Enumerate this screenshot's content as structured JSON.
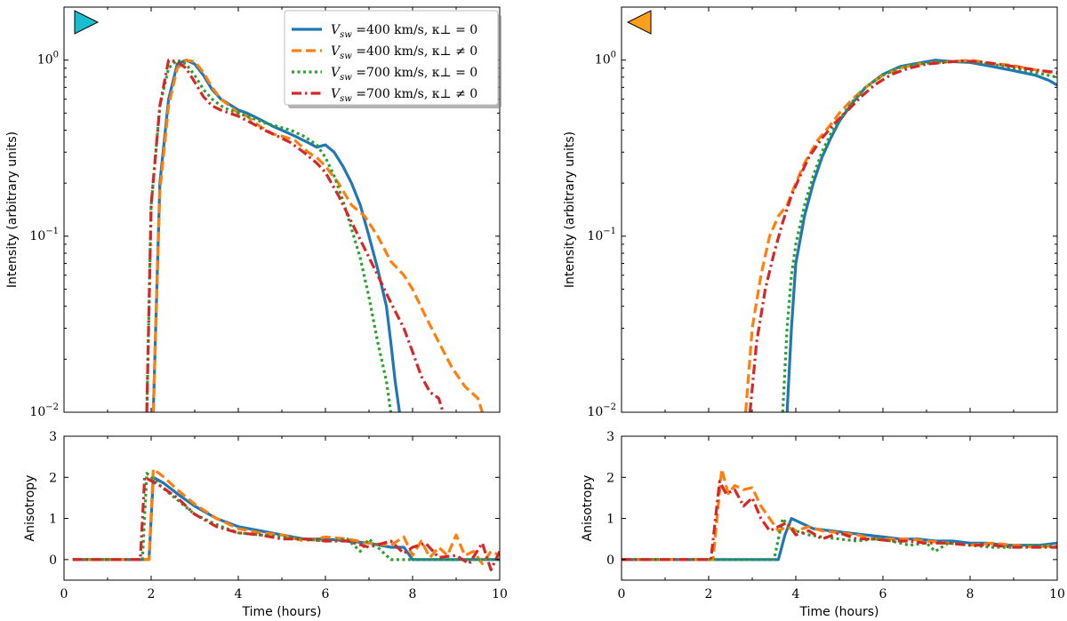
{
  "colors": {
    "blue": "#1f77b4",
    "orange": "#ff7f0e",
    "green": "#2ca02c",
    "red": "#d62728",
    "marker_left": "#17becf",
    "marker_right": "#ff9f1c"
  },
  "legend": [
    {
      "name": "V_sw =400 km/s, κ⊥ = 0",
      "text_main": "V",
      "text_sub": "sw",
      "text_rest": " =400 km/s, κ⊥ = 0",
      "color": "#1f77b4",
      "style": "solid"
    },
    {
      "name": "V_sw =400 km/s, κ⊥ ≠ 0",
      "text_main": "V",
      "text_sub": "sw",
      "text_rest": " =400 km/s, κ⊥ ≠ 0",
      "color": "#ff7f0e",
      "style": "dashed"
    },
    {
      "name": "V_sw =700 km/s, κ⊥ = 0",
      "text_main": "V",
      "text_sub": "sw",
      "text_rest": " =700 km/s, κ⊥ = 0",
      "color": "#2ca02c",
      "style": "dotted"
    },
    {
      "name": "V_sw =700 km/s, κ⊥ ≠ 0",
      "text_main": "V",
      "text_sub": "sw",
      "text_rest": " =700 km/s, κ⊥ ≠ 0",
      "color": "#d62728",
      "style": "dashdot"
    }
  ],
  "chart_data": [
    {
      "type": "line",
      "panel": "top-left",
      "ylabel": "Intensity (arbitrary units)",
      "xlabel": "",
      "yscale": "log",
      "xlim": [
        0,
        10
      ],
      "ylim": [
        0.01,
        2
      ],
      "ytick_labels": [
        {
          "main": "10",
          "exp": "−2",
          "value": 0.01
        },
        {
          "main": "10",
          "exp": "−1",
          "value": 0.1
        },
        {
          "main": "10",
          "exp": "0",
          "value": 1
        }
      ],
      "series": [
        {
          "name": "V_sw =400 km/s, κ⊥ = 0",
          "x": [
            2.05,
            2.2,
            2.4,
            2.6,
            2.8,
            3.0,
            3.2,
            3.4,
            3.6,
            3.8,
            4.0,
            4.2,
            4.5,
            4.8,
            5.0,
            5.3,
            5.6,
            5.8,
            6.0,
            6.2,
            6.4,
            6.6,
            6.8,
            7.0,
            7.2,
            7.4,
            7.5,
            7.6,
            7.7
          ],
          "y": [
            0.01,
            0.2,
            0.6,
            0.95,
            1.0,
            0.95,
            0.82,
            0.68,
            0.6,
            0.56,
            0.52,
            0.5,
            0.46,
            0.42,
            0.4,
            0.37,
            0.34,
            0.32,
            0.33,
            0.3,
            0.25,
            0.2,
            0.15,
            0.1,
            0.065,
            0.04,
            0.025,
            0.015,
            0.01
          ]
        },
        {
          "name": "V_sw =400 km/s, κ⊥ ≠ 0",
          "x": [
            2.05,
            2.2,
            2.4,
            2.6,
            2.8,
            3.0,
            3.2,
            3.4,
            3.6,
            3.8,
            4.0,
            4.2,
            4.5,
            4.8,
            5.0,
            5.3,
            5.6,
            5.8,
            6.0,
            6.3,
            6.6,
            6.9,
            7.2,
            7.5,
            7.8,
            8.0,
            8.3,
            8.6,
            8.9,
            9.2,
            9.5,
            9.6
          ],
          "y": [
            0.01,
            0.18,
            0.55,
            0.9,
            1.0,
            0.98,
            0.85,
            0.7,
            0.6,
            0.55,
            0.5,
            0.48,
            0.42,
            0.38,
            0.37,
            0.35,
            0.3,
            0.28,
            0.25,
            0.2,
            0.15,
            0.13,
            0.1,
            0.072,
            0.06,
            0.05,
            0.035,
            0.025,
            0.018,
            0.014,
            0.012,
            0.01
          ]
        },
        {
          "name": "V_sw =700 km/s, κ⊥ = 0",
          "x": [
            1.9,
            2.0,
            2.2,
            2.4,
            2.6,
            2.8,
            3.0,
            3.2,
            3.4,
            3.6,
            3.8,
            4.0,
            4.3,
            4.6,
            4.9,
            5.2,
            5.5,
            5.8,
            6.0,
            6.2,
            6.4,
            6.6,
            6.8,
            7.0,
            7.2,
            7.4,
            7.5
          ],
          "y": [
            0.01,
            0.15,
            0.55,
            0.9,
            1.0,
            0.95,
            0.82,
            0.68,
            0.6,
            0.55,
            0.52,
            0.5,
            0.47,
            0.44,
            0.42,
            0.4,
            0.37,
            0.33,
            0.28,
            0.22,
            0.16,
            0.11,
            0.075,
            0.045,
            0.025,
            0.015,
            0.01
          ]
        },
        {
          "name": "V_sw =700 km/s, κ⊥ ≠ 0",
          "x": [
            1.9,
            2.0,
            2.2,
            2.4,
            2.6,
            2.8,
            3.0,
            3.2,
            3.4,
            3.6,
            3.8,
            4.0,
            4.3,
            4.6,
            4.9,
            5.2,
            5.5,
            5.8,
            6.0,
            6.3,
            6.6,
            6.9,
            7.2,
            7.5,
            7.8,
            8.0,
            8.2,
            8.4,
            8.6,
            8.7
          ],
          "y": [
            0.01,
            0.15,
            0.55,
            1.0,
            0.98,
            0.9,
            0.75,
            0.62,
            0.55,
            0.52,
            0.5,
            0.48,
            0.44,
            0.4,
            0.37,
            0.34,
            0.3,
            0.26,
            0.23,
            0.17,
            0.12,
            0.085,
            0.06,
            0.042,
            0.03,
            0.022,
            0.016,
            0.013,
            0.012,
            0.01
          ]
        }
      ]
    },
    {
      "type": "line",
      "panel": "bottom-left",
      "ylabel": "Anisotropy",
      "xlabel": "Time (hours)",
      "xlim": [
        0,
        10
      ],
      "ylim": [
        -0.5,
        3
      ],
      "xticks": [
        0,
        2,
        4,
        6,
        8,
        10
      ],
      "yticks": [
        0,
        1,
        2,
        3
      ],
      "series": [
        {
          "name": "V_sw =400 km/s, κ⊥ = 0",
          "x": [
            0.2,
            1.95,
            2.05,
            2.3,
            2.6,
            3.0,
            3.5,
            4.0,
            4.5,
            5.0,
            5.5,
            6.0,
            6.5,
            7.0,
            7.5,
            7.8,
            8.0,
            10.0
          ],
          "y": [
            0,
            0,
            2.0,
            1.85,
            1.6,
            1.3,
            1.0,
            0.8,
            0.7,
            0.6,
            0.5,
            0.5,
            0.45,
            0.4,
            0.3,
            0.3,
            0,
            0
          ]
        },
        {
          "name": "V_sw =400 km/s, κ⊥ ≠ 0",
          "x": [
            0.2,
            1.95,
            2.05,
            2.3,
            2.6,
            3.0,
            3.5,
            4.0,
            4.5,
            5.0,
            5.5,
            6.0,
            6.5,
            7.0,
            7.5,
            7.8,
            8.0,
            8.2,
            8.4,
            8.6,
            8.8,
            9.0,
            9.2,
            9.4,
            9.6,
            9.8,
            10.0
          ],
          "y": [
            0,
            0,
            2.2,
            2.0,
            1.7,
            1.35,
            1.0,
            0.75,
            0.65,
            0.6,
            0.45,
            0.55,
            0.5,
            0.4,
            0.35,
            0.55,
            0.1,
            0.45,
            0.05,
            0.3,
            0.1,
            0.6,
            0.1,
            0.2,
            -0.1,
            0.2,
            0.1
          ]
        },
        {
          "name": "V_sw =700 km/s, κ⊥ = 0",
          "x": [
            0.2,
            1.8,
            1.9,
            2.2,
            2.6,
            3.0,
            3.5,
            4.0,
            4.5,
            5.0,
            5.5,
            6.0,
            6.5,
            6.8,
            7.0,
            7.2,
            7.5,
            8.0,
            10.0
          ],
          "y": [
            0,
            0,
            2.1,
            1.8,
            1.45,
            1.1,
            0.85,
            0.65,
            0.6,
            0.55,
            0.5,
            0.45,
            0.5,
            0.2,
            0.5,
            0.3,
            0,
            0,
            0
          ]
        },
        {
          "name": "V_sw =700 km/s, κ⊥ ≠ 0",
          "x": [
            0.2,
            1.75,
            1.85,
            2.2,
            2.6,
            3.0,
            3.5,
            4.0,
            4.5,
            5.0,
            5.5,
            6.0,
            6.5,
            7.0,
            7.5,
            7.8,
            8.0,
            8.3,
            8.6,
            9.0,
            9.3,
            9.6,
            9.8,
            10.0
          ],
          "y": [
            0,
            0,
            2.0,
            1.8,
            1.5,
            1.1,
            0.8,
            0.65,
            0.6,
            0.5,
            0.5,
            0.45,
            0.45,
            0.3,
            0.45,
            0.15,
            0.3,
            0.4,
            0.05,
            0.1,
            -0.1,
            0.4,
            -0.25,
            0.2
          ]
        }
      ]
    },
    {
      "type": "line",
      "panel": "top-right",
      "ylabel": "Intensity (arbitrary units)",
      "xlabel": "",
      "yscale": "log",
      "xlim": [
        0,
        10
      ],
      "ylim": [
        0.01,
        2
      ],
      "ytick_labels": [
        {
          "main": "10",
          "exp": "−2",
          "value": 0.01
        },
        {
          "main": "10",
          "exp": "−1",
          "value": 0.1
        },
        {
          "main": "10",
          "exp": "0",
          "value": 1
        }
      ],
      "series": [
        {
          "name": "V_sw =400 km/s, κ⊥ = 0",
          "x": [
            3.8,
            3.9,
            4.0,
            4.2,
            4.4,
            4.6,
            4.8,
            5.0,
            5.3,
            5.6,
            6.0,
            6.4,
            6.8,
            7.2,
            7.6,
            8.0,
            8.5,
            9.0,
            9.5,
            9.8,
            10.0
          ],
          "y": [
            0.01,
            0.03,
            0.07,
            0.13,
            0.2,
            0.28,
            0.36,
            0.45,
            0.57,
            0.7,
            0.83,
            0.92,
            0.96,
            1.0,
            0.98,
            0.97,
            0.92,
            0.87,
            0.82,
            0.77,
            0.72
          ]
        },
        {
          "name": "V_sw =400 km/s, κ⊥ ≠ 0",
          "x": [
            2.85,
            3.0,
            3.2,
            3.4,
            3.6,
            3.8,
            4.0,
            4.2,
            4.5,
            4.8,
            5.0,
            5.3,
            5.6,
            6.0,
            6.4,
            6.8,
            7.2,
            7.6,
            8.0,
            8.5,
            9.0,
            9.5,
            10.0
          ],
          "y": [
            0.01,
            0.03,
            0.06,
            0.1,
            0.13,
            0.15,
            0.2,
            0.26,
            0.35,
            0.43,
            0.5,
            0.6,
            0.7,
            0.82,
            0.9,
            0.95,
            0.97,
            0.98,
            1.0,
            0.96,
            0.93,
            0.88,
            0.84
          ]
        },
        {
          "name": "V_sw =700 km/s, κ⊥ = 0",
          "x": [
            3.7,
            3.8,
            3.9,
            4.0,
            4.2,
            4.4,
            4.6,
            4.8,
            5.0,
            5.3,
            5.6,
            6.0,
            6.4,
            6.8,
            7.2,
            7.6,
            8.0,
            8.5,
            9.0,
            9.5,
            10.0
          ],
          "y": [
            0.01,
            0.03,
            0.06,
            0.09,
            0.15,
            0.22,
            0.3,
            0.38,
            0.46,
            0.58,
            0.7,
            0.82,
            0.91,
            0.95,
            0.97,
            0.98,
            0.98,
            0.95,
            0.9,
            0.85,
            0.8
          ]
        },
        {
          "name": "V_sw =700 km/s, κ⊥ ≠ 0",
          "x": [
            2.95,
            3.1,
            3.3,
            3.5,
            3.7,
            3.9,
            4.1,
            4.3,
            4.6,
            4.9,
            5.2,
            5.5,
            5.8,
            6.2,
            6.6,
            7.0,
            7.4,
            7.8,
            8.2,
            8.6,
            9.0,
            9.5,
            10.0
          ],
          "y": [
            0.01,
            0.025,
            0.05,
            0.08,
            0.12,
            0.17,
            0.22,
            0.28,
            0.36,
            0.44,
            0.52,
            0.62,
            0.72,
            0.83,
            0.9,
            0.95,
            0.97,
            0.99,
            0.98,
            0.95,
            0.92,
            0.88,
            0.85
          ]
        }
      ]
    },
    {
      "type": "line",
      "panel": "bottom-right",
      "ylabel": "Anisotropy",
      "xlabel": "Time (hours)",
      "xlim": [
        0,
        10
      ],
      "ylim": [
        -0.5,
        3
      ],
      "xticks": [
        0,
        2,
        4,
        6,
        8,
        10
      ],
      "yticks": [
        0,
        1,
        2,
        3
      ],
      "series": [
        {
          "name": "V_sw =400 km/s, κ⊥ = 0",
          "x": [
            0.0,
            3.6,
            3.75,
            3.9,
            4.1,
            4.4,
            4.8,
            5.2,
            5.6,
            6.0,
            6.4,
            6.8,
            7.2,
            7.6,
            8.0,
            8.4,
            8.8,
            9.2,
            9.6,
            10.0
          ],
          "y": [
            0,
            0,
            0.6,
            1.0,
            0.9,
            0.75,
            0.7,
            0.65,
            0.6,
            0.55,
            0.5,
            0.5,
            0.45,
            0.45,
            0.4,
            0.4,
            0.35,
            0.35,
            0.35,
            0.4
          ]
        },
        {
          "name": "V_sw =400 km/s, κ⊥ ≠ 0",
          "x": [
            0.0,
            2.1,
            2.3,
            2.45,
            2.6,
            2.8,
            3.0,
            3.2,
            3.4,
            3.6,
            3.8,
            4.0,
            4.3,
            4.6,
            5.0,
            5.4,
            5.8,
            6.2,
            6.6,
            7.0,
            7.5,
            8.0,
            8.5,
            9.0,
            9.5,
            10.0
          ],
          "y": [
            0,
            0,
            2.2,
            1.6,
            1.8,
            1.7,
            1.75,
            1.3,
            1.0,
            0.7,
            0.8,
            0.7,
            0.8,
            0.7,
            0.65,
            0.6,
            0.5,
            0.5,
            0.5,
            0.45,
            0.4,
            0.35,
            0.4,
            0.35,
            0.3,
            0.35
          ]
        },
        {
          "name": "V_sw =700 km/s, κ⊥ = 0",
          "x": [
            0.0,
            3.5,
            3.7,
            3.8,
            4.0,
            4.3,
            4.6,
            5.0,
            5.4,
            5.8,
            6.2,
            6.6,
            7.0,
            7.2,
            7.5,
            8.0,
            8.5,
            9.0,
            9.5,
            10.0
          ],
          "y": [
            0,
            0,
            1.0,
            0.85,
            0.7,
            0.6,
            0.55,
            0.5,
            0.45,
            0.5,
            0.45,
            0.35,
            0.4,
            0.2,
            0.4,
            0.35,
            0.3,
            0.3,
            0.35,
            0.3
          ]
        },
        {
          "name": "V_sw =700 km/s, κ⊥ ≠ 0",
          "x": [
            0.0,
            2.05,
            2.25,
            2.4,
            2.6,
            2.8,
            3.0,
            3.2,
            3.4,
            3.6,
            3.8,
            4.0,
            4.3,
            4.6,
            5.0,
            5.4,
            5.8,
            6.2,
            6.6,
            7.0,
            7.5,
            8.0,
            8.5,
            9.0,
            9.5,
            10.0
          ],
          "y": [
            0,
            0,
            1.9,
            1.6,
            1.7,
            1.3,
            1.5,
            1.0,
            0.7,
            0.8,
            0.9,
            0.6,
            0.7,
            0.5,
            0.65,
            0.5,
            0.5,
            0.45,
            0.45,
            0.4,
            0.4,
            0.35,
            0.35,
            0.3,
            0.3,
            0.3
          ]
        }
      ]
    }
  ]
}
